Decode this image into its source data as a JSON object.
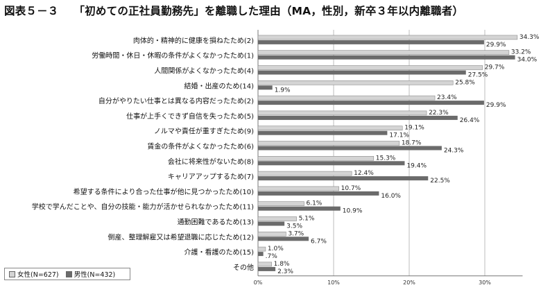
{
  "title": {
    "figure_no": "図表５－３",
    "text": "「初めての正社員勤務先」を離職した理由（MA，性別，新卒３年以内離職者）"
  },
  "colors": {
    "female": "#d4d4d4",
    "male": "#6b6b6b",
    "grid": "#bdbdbd",
    "axis": "#777777"
  },
  "legend": {
    "female": "女性(N=627)",
    "male": "男性(N=432)"
  },
  "chart_data": {
    "type": "bar",
    "orientation": "horizontal",
    "categories": [
      "肉体的・精神的に健康を損ねたため(2)",
      "労働時間・休日・休暇の条件がよくなかったため(1)",
      "人間関係がよくなかったため(4)",
      "結婚・出産のため(14)",
      "自分がやりたい仕事とは異なる内容だったため(2)",
      "仕事が上手くできず自信を失ったため(5)",
      "ノルマや責任が重すぎたため(9)",
      "賃金の条件がよくなかったため(6)",
      "会社に将来性がないため(8)",
      "キャリアアップするため(7)",
      "希望する条件により合った仕事が他に見つかったため(10)",
      "学校で学んだことや、自分の技能・能力が活かせられなかったため(11)",
      "通勤困難であるため(13)",
      "倒産、整理解雇又は希望退職に応じたため(12)",
      "介護・看護のため(15)",
      "その他"
    ],
    "series": [
      {
        "name": "女性(N=627)",
        "values": [
          34.3,
          33.2,
          29.7,
          25.8,
          23.4,
          22.3,
          19.1,
          18.7,
          15.3,
          12.4,
          10.7,
          6.1,
          5.1,
          3.7,
          1.0,
          1.8
        ],
        "labels": [
          "34.3%",
          "33.2%",
          "29.7%",
          "25.8%",
          "23.4%",
          "22.3%",
          "19.1%",
          "18.7%",
          "15.3%",
          "12.4%",
          "10.7%",
          "6.1%",
          "5.1%",
          "3.7%",
          "1.0%",
          "1.8%"
        ]
      },
      {
        "name": "男性(N=432)",
        "values": [
          29.9,
          34.0,
          27.5,
          1.9,
          29.9,
          26.4,
          17.1,
          24.3,
          19.4,
          22.5,
          16.0,
          10.9,
          3.5,
          6.7,
          0.7,
          2.3
        ],
        "labels": [
          "29.9%",
          "34.0%",
          "27.5%",
          "1.9%",
          "29.9%",
          "26.4%",
          "17.1%",
          "24.3%",
          "19.4%",
          "22.5%",
          "16.0%",
          "10.9%",
          "3.5%",
          "6.7%",
          ".7%",
          "2.3%"
        ]
      }
    ],
    "xlim": [
      0,
      35
    ],
    "xticks": [
      "0%",
      "10%",
      "20%",
      "30%"
    ],
    "xtick_values": [
      0,
      10,
      20,
      30
    ],
    "grid": true,
    "legend_position": "bottom-left"
  }
}
